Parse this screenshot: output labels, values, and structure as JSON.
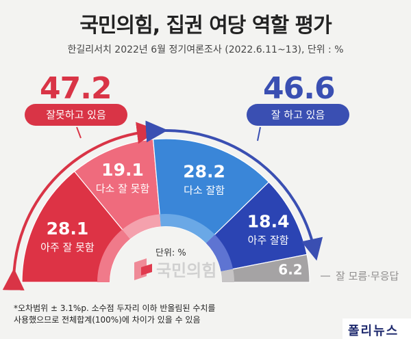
{
  "header": {
    "title": "국민의힘, 집권 여당 역할 평가",
    "subtitle": "한길리서치 2022년 6월 정기여론조사 (2022.6.11~13), 단위 : %"
  },
  "summary": {
    "negative_total": "47.2",
    "negative_label": "잘못하고 있음",
    "positive_total": "46.6",
    "positive_label": "잘 하고 있음"
  },
  "center": {
    "unit": "단위: %",
    "logo_text": "국민의힘"
  },
  "footnote": {
    "line1": "*오차범위 ± 3.1%p. 소수점 두자리 이하 반올림된 수치를",
    "line2": "사용했으므로 전체합계(100%)에 차이가 있을 수 있음"
  },
  "brand": {
    "text": "폴리뉴스"
  },
  "colors": {
    "very_bad": "#dd3345",
    "somewhat_bad": "#ef6b7d",
    "somewhat_good": "#3a86d8",
    "very_good": "#2b44b3",
    "dont_know": "#a5a3a4",
    "negative_accent": "#d93446",
    "positive_accent": "#3a4fb2"
  },
  "chart_data": {
    "type": "pie",
    "title": "국민의힘, 집권 여당 역할 평가",
    "subtitle": "한길리서치 2022년 6월 정기여론조사 (2022.6.11~13), 단위 : %",
    "categories": [
      "아주 잘 못함",
      "다소 잘 못함",
      "다소 잘함",
      "아주 잘함",
      "잘 모름·무응답"
    ],
    "values": [
      28.1,
      19.1,
      28.2,
      18.4,
      6.2
    ],
    "unit": "%",
    "groups": [
      {
        "name": "잘못하고 있음",
        "total": 47.2
      },
      {
        "name": "잘 하고 있음",
        "total": 46.6
      }
    ]
  }
}
